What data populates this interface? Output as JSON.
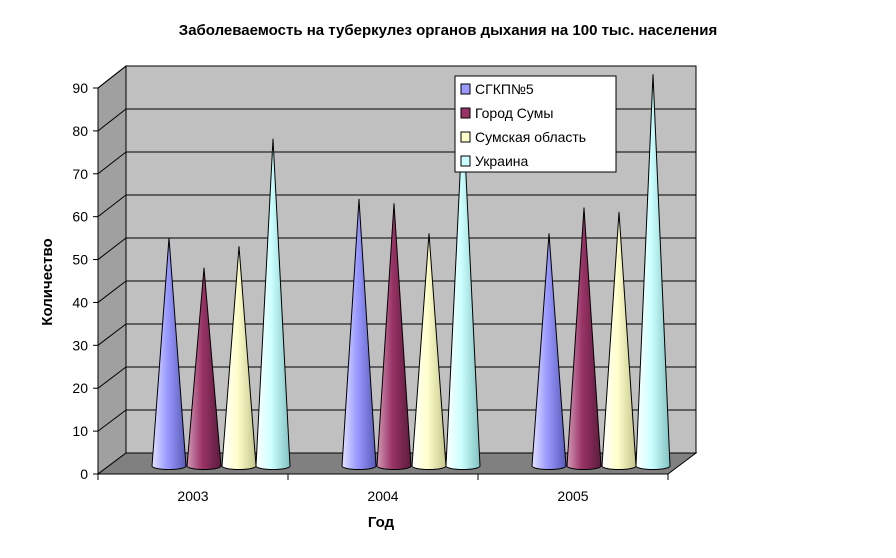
{
  "chart_data": {
    "type": "bar",
    "subtype": "3d-cone",
    "title": "Заболеваемость на туберкулез органов дыхания на 100 тыс. населения",
    "xlabel": "Год",
    "ylabel": "Количество",
    "categories": [
      "2003",
      "2004",
      "2005"
    ],
    "ylim": [
      0,
      90
    ],
    "yticks": [
      "0",
      "10",
      "20",
      "30",
      "40",
      "50",
      "60",
      "70",
      "80",
      "90"
    ],
    "grid": true,
    "legend_position": "top-right",
    "series": [
      {
        "name": "СГКП№5",
        "color": "#9999ff",
        "values": [
          50,
          59,
          51
        ]
      },
      {
        "name": "Город Сумы",
        "color": "#993366",
        "values": [
          43,
          58,
          57
        ]
      },
      {
        "name": "Сумская область",
        "color": "#ffffcc",
        "values": [
          48,
          51,
          56
        ]
      },
      {
        "name": "Украина",
        "color": "#ccffff",
        "values": [
          73,
          79,
          88
        ]
      }
    ]
  }
}
